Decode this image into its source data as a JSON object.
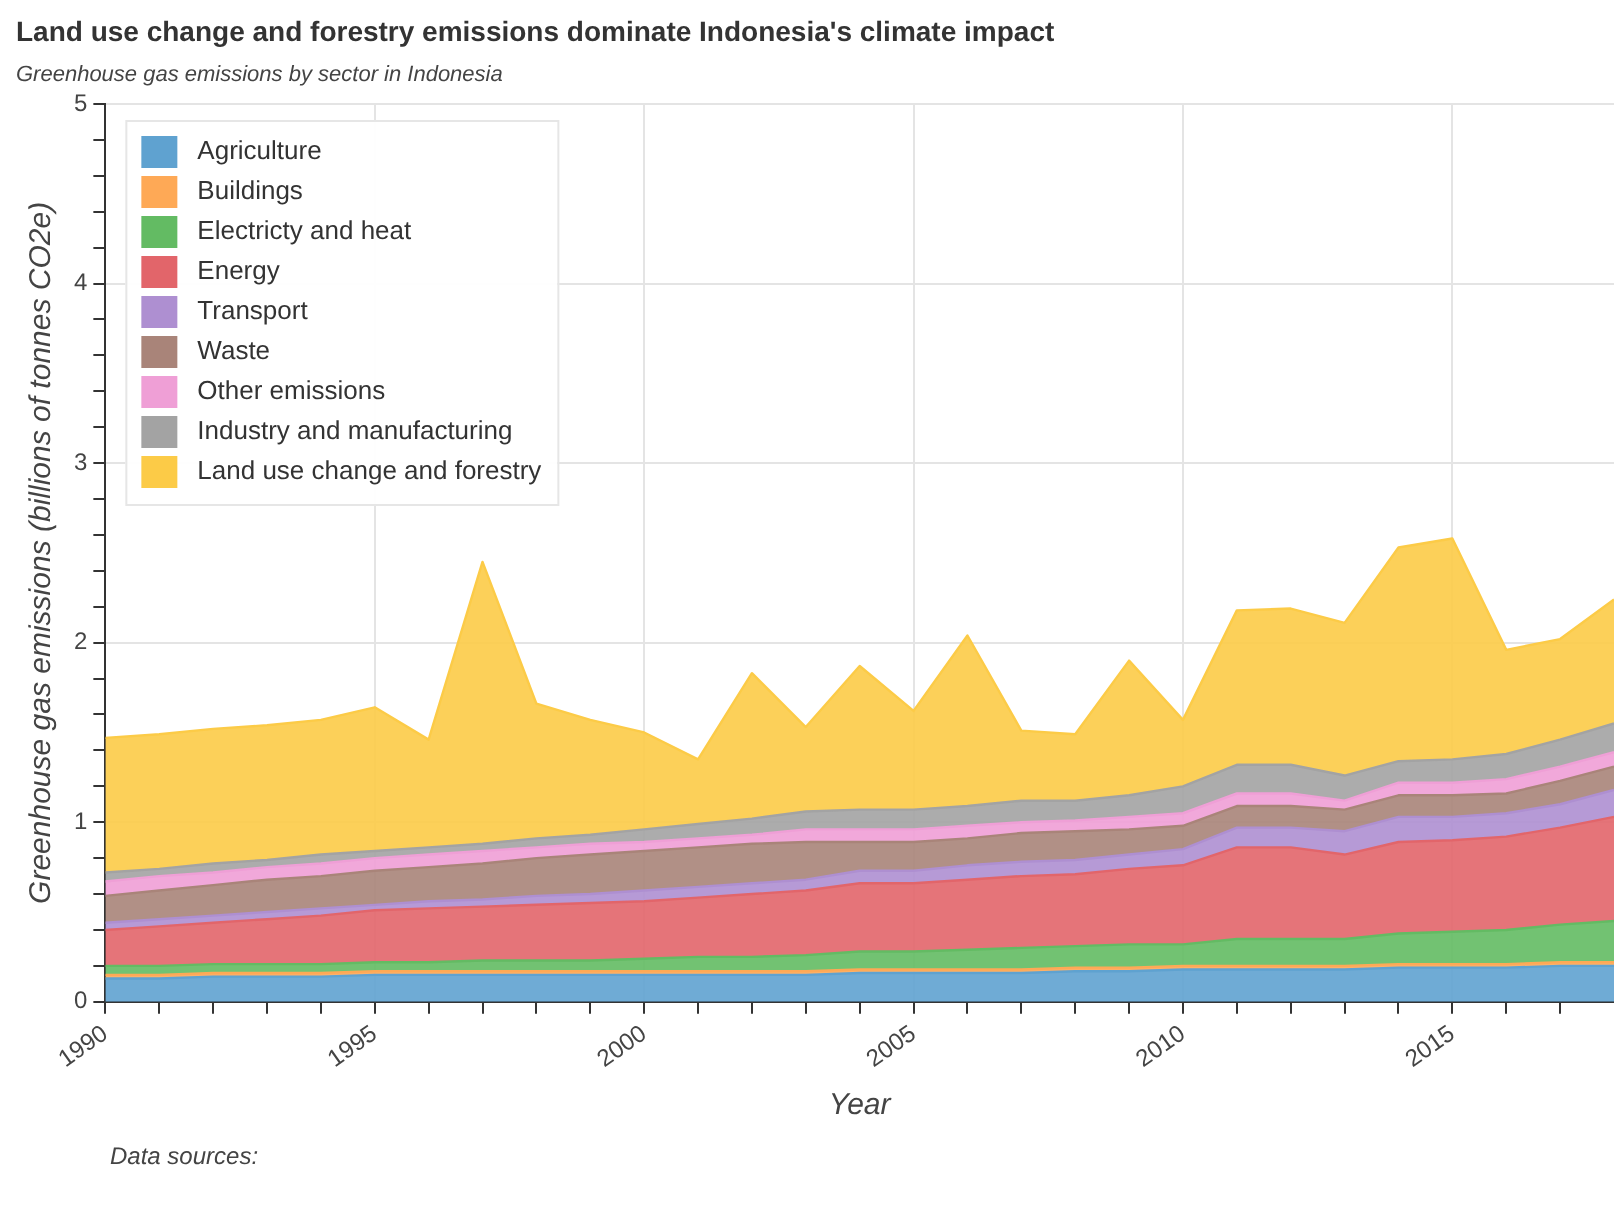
{
  "chart_data": {
    "type": "area",
    "stacked": true,
    "title": "Land use change and forestry emissions dominate Indonesia's climate impact",
    "subtitle": "Greenhouse gas emissions by sector in Indonesia",
    "xlabel": "Year",
    "ylabel": "Greenhouse gas emissions (billions of tonnes CO2e)",
    "annotations": [
      "Data sources:"
    ],
    "x": [
      1990,
      1991,
      1992,
      1993,
      1994,
      1995,
      1996,
      1997,
      1998,
      1999,
      2000,
      2001,
      2002,
      2003,
      2004,
      2005,
      2006,
      2007,
      2008,
      2009,
      2010,
      2011,
      2012,
      2013,
      2014,
      2015,
      2016,
      2017,
      2018
    ],
    "series": [
      {
        "name": "Agriculture",
        "color": "#5fa2d0",
        "values": [
          0.13,
          0.13,
          0.14,
          0.14,
          0.14,
          0.15,
          0.15,
          0.15,
          0.15,
          0.15,
          0.15,
          0.15,
          0.15,
          0.15,
          0.16,
          0.16,
          0.16,
          0.16,
          0.17,
          0.17,
          0.18,
          0.18,
          0.18,
          0.18,
          0.19,
          0.19,
          0.19,
          0.2,
          0.2
        ]
      },
      {
        "name": "Buildings",
        "color": "#fea956",
        "values": [
          0.02,
          0.02,
          0.02,
          0.02,
          0.02,
          0.02,
          0.02,
          0.02,
          0.02,
          0.02,
          0.02,
          0.02,
          0.02,
          0.02,
          0.02,
          0.02,
          0.02,
          0.02,
          0.02,
          0.02,
          0.02,
          0.02,
          0.02,
          0.02,
          0.02,
          0.02,
          0.02,
          0.02,
          0.02
        ]
      },
      {
        "name": "Electricty and heat",
        "color": "#63bb63",
        "values": [
          0.05,
          0.05,
          0.05,
          0.05,
          0.05,
          0.05,
          0.05,
          0.06,
          0.06,
          0.06,
          0.07,
          0.08,
          0.08,
          0.09,
          0.1,
          0.1,
          0.11,
          0.12,
          0.12,
          0.13,
          0.12,
          0.15,
          0.15,
          0.15,
          0.17,
          0.18,
          0.19,
          0.21,
          0.23
        ]
      },
      {
        "name": "Energy",
        "color": "#e2656a",
        "values": [
          0.2,
          0.22,
          0.23,
          0.25,
          0.27,
          0.29,
          0.3,
          0.3,
          0.31,
          0.32,
          0.32,
          0.33,
          0.35,
          0.36,
          0.38,
          0.38,
          0.39,
          0.4,
          0.4,
          0.42,
          0.44,
          0.51,
          0.51,
          0.47,
          0.51,
          0.51,
          0.52,
          0.54,
          0.58
        ]
      },
      {
        "name": "Transport",
        "color": "#ae8fd1",
        "values": [
          0.04,
          0.04,
          0.04,
          0.04,
          0.04,
          0.03,
          0.04,
          0.04,
          0.05,
          0.05,
          0.06,
          0.06,
          0.06,
          0.06,
          0.07,
          0.07,
          0.08,
          0.08,
          0.08,
          0.08,
          0.09,
          0.11,
          0.11,
          0.13,
          0.14,
          0.13,
          0.13,
          0.13,
          0.15
        ]
      },
      {
        "name": "Waste",
        "color": "#a98479",
        "values": [
          0.15,
          0.16,
          0.17,
          0.18,
          0.18,
          0.19,
          0.19,
          0.2,
          0.21,
          0.22,
          0.22,
          0.22,
          0.22,
          0.21,
          0.16,
          0.16,
          0.15,
          0.16,
          0.16,
          0.14,
          0.13,
          0.12,
          0.12,
          0.12,
          0.12,
          0.12,
          0.11,
          0.13,
          0.13
        ]
      },
      {
        "name": "Other emissions",
        "color": "#ef9fd6",
        "values": [
          0.08,
          0.08,
          0.07,
          0.07,
          0.07,
          0.07,
          0.07,
          0.07,
          0.06,
          0.06,
          0.05,
          0.05,
          0.05,
          0.07,
          0.07,
          0.07,
          0.07,
          0.06,
          0.06,
          0.07,
          0.07,
          0.07,
          0.07,
          0.05,
          0.07,
          0.07,
          0.08,
          0.08,
          0.08
        ]
      },
      {
        "name": "Industry and manufacturing",
        "color": "#a3a3a3",
        "values": [
          0.05,
          0.04,
          0.05,
          0.04,
          0.05,
          0.04,
          0.04,
          0.04,
          0.05,
          0.05,
          0.07,
          0.08,
          0.09,
          0.1,
          0.11,
          0.11,
          0.11,
          0.12,
          0.11,
          0.12,
          0.15,
          0.16,
          0.16,
          0.14,
          0.12,
          0.13,
          0.14,
          0.15,
          0.16
        ]
      },
      {
        "name": "Land use change and forestry",
        "color": "#fccb47",
        "values": [
          0.75,
          0.75,
          0.75,
          0.75,
          0.75,
          0.8,
          0.6,
          1.57,
          0.75,
          0.64,
          0.54,
          0.36,
          0.81,
          0.47,
          0.8,
          0.55,
          0.95,
          0.39,
          0.37,
          0.75,
          0.37,
          0.86,
          0.87,
          0.85,
          1.19,
          1.23,
          0.58,
          0.56,
          0.69
        ]
      }
    ],
    "xlim": [
      1990,
      2018
    ],
    "xticks": [
      1990,
      {
        "value": 1991,
        "label": null
      },
      {
        "value": 1992,
        "label": null
      },
      {
        "value": 1993,
        "label": null
      },
      {
        "value": 1994,
        "label": null
      },
      1995,
      {
        "value": 1996,
        "label": null
      },
      {
        "value": 1997,
        "label": null
      },
      {
        "value": 1998,
        "label": null
      },
      {
        "value": 1999,
        "label": null
      },
      2000,
      {
        "value": 2001,
        "label": null
      },
      {
        "value": 2002,
        "label": null
      },
      {
        "value": 2003,
        "label": null
      },
      {
        "value": 2004,
        "label": null
      },
      2005,
      {
        "value": 2006,
        "label": null
      },
      {
        "value": 2007,
        "label": null
      },
      {
        "value": 2008,
        "label": null
      },
      {
        "value": 2009,
        "label": null
      },
      2010,
      {
        "value": 2011,
        "label": null
      },
      {
        "value": 2012,
        "label": null
      },
      {
        "value": 2013,
        "label": null
      },
      {
        "value": 2014,
        "label": null
      },
      2015,
      {
        "value": 2016,
        "label": null
      },
      {
        "value": 2017,
        "label": null
      }
    ],
    "ylim": [
      0,
      5
    ],
    "yticks": [
      0,
      {
        "value": 0.2,
        "label": null
      },
      {
        "value": 0.4,
        "label": null
      },
      {
        "value": 0.6,
        "label": null
      },
      {
        "value": 0.8,
        "label": null
      },
      1,
      {
        "value": 1.2,
        "label": null
      },
      {
        "value": 1.4,
        "label": null
      },
      {
        "value": 1.6,
        "label": null
      },
      {
        "value": 1.8,
        "label": null
      },
      2,
      {
        "value": 2.2,
        "label": null
      },
      {
        "value": 2.4,
        "label": null
      },
      {
        "value": 2.6,
        "label": null
      },
      {
        "value": 2.8,
        "label": null
      },
      3,
      {
        "value": 3.2,
        "label": null
      },
      {
        "value": 3.4,
        "label": null
      },
      {
        "value": 3.6,
        "label": null
      },
      {
        "value": 3.8,
        "label": null
      },
      4,
      {
        "value": 4.2,
        "label": null
      },
      {
        "value": 4.4,
        "label": null
      },
      {
        "value": 4.6,
        "label": null
      },
      {
        "value": 4.8,
        "label": null
      },
      5
    ],
    "grid": true,
    "legend": "top left"
  }
}
